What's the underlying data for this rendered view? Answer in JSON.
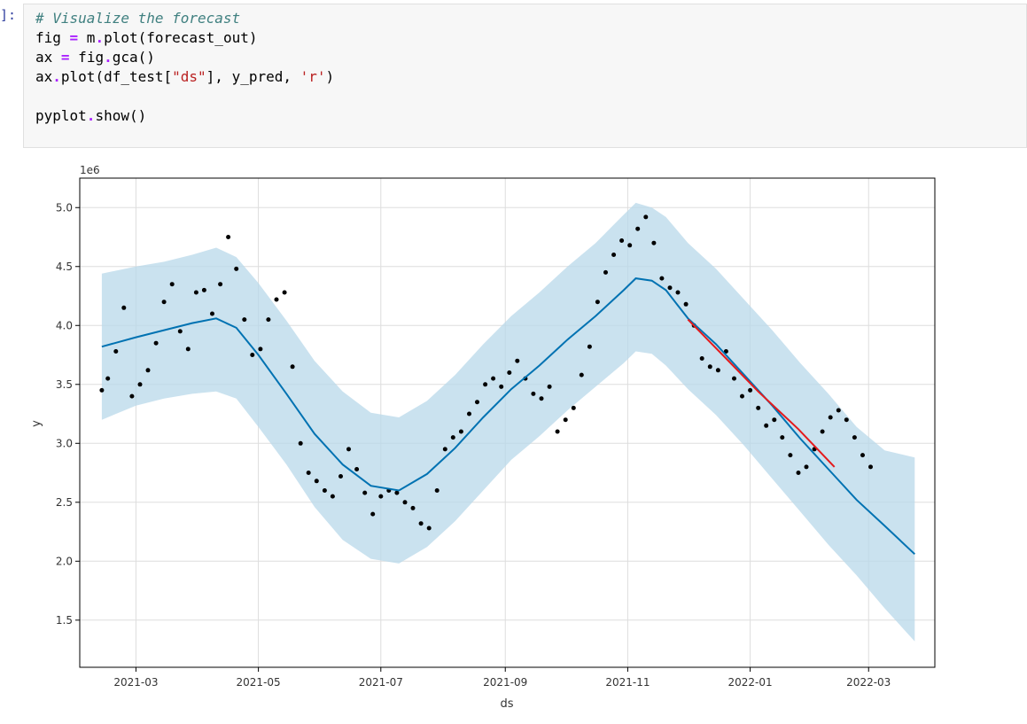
{
  "cell": {
    "prompt": "]:",
    "code": [
      [
        {
          "t": "# Visualize the forecast",
          "c": "cm"
        }
      ],
      [
        {
          "t": "fig "
        },
        {
          "t": "=",
          "c": "op"
        },
        {
          "t": " m"
        },
        {
          "t": ".",
          "c": "op"
        },
        {
          "t": "plot(forecast_out)"
        }
      ],
      [
        {
          "t": "ax "
        },
        {
          "t": "=",
          "c": "op"
        },
        {
          "t": " fig"
        },
        {
          "t": ".",
          "c": "op"
        },
        {
          "t": "gca()"
        }
      ],
      [
        {
          "t": "ax"
        },
        {
          "t": ".",
          "c": "op"
        },
        {
          "t": "plot(df_test["
        },
        {
          "t": "\"ds\"",
          "c": "str"
        },
        {
          "t": "], y_pred, "
        },
        {
          "t": "'r'",
          "c": "str"
        },
        {
          "t": ")"
        }
      ],
      [],
      [
        {
          "t": "pyplot"
        },
        {
          "t": ".",
          "c": "op"
        },
        {
          "t": "show()"
        }
      ]
    ]
  },
  "chart_data": {
    "type": "line",
    "xlabel": "ds",
    "ylabel": "y",
    "y_offset_label": "1e6",
    "x_ticks": [
      "2021-03",
      "2021-05",
      "2021-07",
      "2021-09",
      "2021-11",
      "2022-01",
      "2022-03"
    ],
    "y_ticks": [
      1.5,
      2.0,
      2.5,
      3.0,
      3.5,
      4.0,
      4.5,
      5.0
    ],
    "xlim": [
      "2021-02-01",
      "2022-04-03"
    ],
    "ylim": [
      1.1,
      5.25
    ],
    "grid": true,
    "colors": {
      "forecast": "#0072b2",
      "band": "#b8d8ea",
      "prediction": "#e41a1c",
      "points": "#000000"
    },
    "forecast": {
      "x": [
        "2021-02-12",
        "2021-03-01",
        "2021-03-15",
        "2021-03-29",
        "2021-04-10",
        "2021-04-20",
        "2021-05-01",
        "2021-05-15",
        "2021-05-29",
        "2021-06-12",
        "2021-06-26",
        "2021-07-10",
        "2021-07-24",
        "2021-08-07",
        "2021-08-21",
        "2021-09-04",
        "2021-09-18",
        "2021-10-02",
        "2021-10-16",
        "2021-10-30",
        "2021-11-05",
        "2021-11-13",
        "2021-11-20",
        "2021-12-01",
        "2021-12-15",
        "2021-12-29",
        "2022-01-12",
        "2022-01-26",
        "2022-02-09",
        "2022-02-23",
        "2022-03-09",
        "2022-03-24"
      ],
      "y": [
        3.82,
        3.9,
        3.96,
        4.02,
        4.06,
        3.98,
        3.75,
        3.42,
        3.08,
        2.82,
        2.64,
        2.6,
        2.74,
        2.96,
        3.22,
        3.46,
        3.66,
        3.88,
        4.08,
        4.3,
        4.4,
        4.38,
        4.3,
        4.06,
        3.84,
        3.58,
        3.32,
        3.04,
        2.78,
        2.52,
        2.3,
        2.06
      ],
      "lower": [
        3.2,
        3.32,
        3.38,
        3.42,
        3.44,
        3.38,
        3.14,
        2.82,
        2.46,
        2.18,
        2.02,
        1.98,
        2.12,
        2.34,
        2.6,
        2.86,
        3.06,
        3.28,
        3.48,
        3.68,
        3.78,
        3.76,
        3.66,
        3.46,
        3.24,
        2.98,
        2.7,
        2.42,
        2.14,
        1.88,
        1.6,
        1.32
      ],
      "upper": [
        4.44,
        4.5,
        4.54,
        4.6,
        4.66,
        4.58,
        4.36,
        4.04,
        3.7,
        3.44,
        3.26,
        3.22,
        3.36,
        3.58,
        3.84,
        4.08,
        4.28,
        4.5,
        4.7,
        4.94,
        5.04,
        5.0,
        4.92,
        4.7,
        4.48,
        4.22,
        3.96,
        3.68,
        3.42,
        3.14,
        2.94,
        2.88
      ]
    },
    "prediction": {
      "x": [
        "2021-12-01",
        "2021-12-20",
        "2022-01-05",
        "2022-01-25",
        "2022-02-12"
      ],
      "y": [
        4.05,
        3.72,
        3.44,
        3.12,
        2.8
      ]
    },
    "points": {
      "x": [
        "2021-02-12",
        "2021-02-15",
        "2021-02-19",
        "2021-02-23",
        "2021-02-27",
        "2021-03-03",
        "2021-03-07",
        "2021-03-11",
        "2021-03-15",
        "2021-03-19",
        "2021-03-23",
        "2021-03-27",
        "2021-03-31",
        "2021-04-04",
        "2021-04-08",
        "2021-04-12",
        "2021-04-16",
        "2021-04-20",
        "2021-04-24",
        "2021-04-28",
        "2021-05-02",
        "2021-05-06",
        "2021-05-10",
        "2021-05-14",
        "2021-05-18",
        "2021-05-22",
        "2021-05-26",
        "2021-05-30",
        "2021-06-03",
        "2021-06-07",
        "2021-06-11",
        "2021-06-15",
        "2021-06-19",
        "2021-06-23",
        "2021-06-27",
        "2021-07-01",
        "2021-07-05",
        "2021-07-09",
        "2021-07-13",
        "2021-07-17",
        "2021-07-21",
        "2021-07-25",
        "2021-07-29",
        "2021-08-02",
        "2021-08-06",
        "2021-08-10",
        "2021-08-14",
        "2021-08-18",
        "2021-08-22",
        "2021-08-26",
        "2021-08-30",
        "2021-09-03",
        "2021-09-07",
        "2021-09-11",
        "2021-09-15",
        "2021-09-19",
        "2021-09-23",
        "2021-09-27",
        "2021-10-01",
        "2021-10-05",
        "2021-10-09",
        "2021-10-13",
        "2021-10-17",
        "2021-10-21",
        "2021-10-25",
        "2021-10-29",
        "2021-11-02",
        "2021-11-06",
        "2021-11-10",
        "2021-11-14",
        "2021-11-18",
        "2021-11-22",
        "2021-11-26",
        "2021-11-30",
        "2021-12-04",
        "2021-12-08",
        "2021-12-12",
        "2021-12-16",
        "2021-12-20",
        "2021-12-24",
        "2021-12-28",
        "2022-01-01",
        "2022-01-05",
        "2022-01-09",
        "2022-01-13",
        "2022-01-17",
        "2022-01-21",
        "2022-01-25",
        "2022-01-29",
        "2022-02-02",
        "2022-02-06",
        "2022-02-10",
        "2022-02-14",
        "2022-02-18",
        "2022-02-22",
        "2022-02-26",
        "2022-03-02"
      ],
      "y": [
        3.45,
        3.55,
        3.78,
        4.15,
        3.4,
        3.5,
        3.62,
        3.85,
        4.2,
        4.35,
        3.95,
        3.8,
        4.28,
        4.3,
        4.1,
        4.35,
        4.75,
        4.48,
        4.05,
        3.75,
        3.8,
        4.05,
        4.22,
        4.28,
        3.65,
        3.0,
        2.75,
        2.68,
        2.6,
        2.55,
        2.72,
        2.95,
        2.78,
        2.58,
        2.4,
        2.55,
        2.6,
        2.58,
        2.5,
        2.45,
        2.32,
        2.28,
        2.6,
        2.95,
        3.05,
        3.1,
        3.25,
        3.35,
        3.5,
        3.55,
        3.48,
        3.6,
        3.7,
        3.55,
        3.42,
        3.38,
        3.48,
        3.1,
        3.2,
        3.3,
        3.58,
        3.82,
        4.2,
        4.45,
        4.6,
        4.72,
        4.68,
        4.82,
        4.92,
        4.7,
        4.4,
        4.32,
        4.28,
        4.18,
        4.0,
        3.72,
        3.65,
        3.62,
        3.78,
        3.55,
        3.4,
        3.45,
        3.3,
        3.15,
        3.2,
        3.05,
        2.9,
        2.75,
        2.8,
        2.95,
        3.1,
        3.22,
        3.28,
        3.2,
        3.05,
        2.9,
        2.8
      ]
    }
  }
}
